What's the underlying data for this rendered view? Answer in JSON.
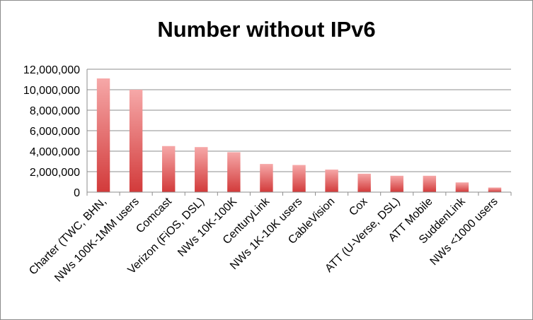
{
  "chart_data": {
    "type": "bar",
    "title": "Number without IPv6",
    "xlabel": "",
    "ylabel": "",
    "ylim": [
      0,
      12000000
    ],
    "yticks": [
      0,
      2000000,
      4000000,
      6000000,
      8000000,
      10000000,
      12000000
    ],
    "ytick_labels": [
      "0",
      "2,000,000",
      "4,000,000",
      "6,000,000",
      "8,000,000",
      "10,000,000",
      "12,000,000"
    ],
    "grid": true,
    "legend": "none",
    "bar_color_top": "#f6a8a8",
    "bar_color_bottom": "#d23a3a",
    "categories": [
      "Charter (TWC, BHN,",
      "NWs 100K-1MM users",
      "Comcast",
      "Verizon (FiOS, DSL)",
      "NWs 10K-100K",
      "CenturyLink",
      "NWs 1K-10K users",
      "CableVision",
      "Cox",
      "ATT (U-Verse, DSL)",
      "ATT Mobile",
      "SuddenLink",
      "NWs <1000 users"
    ],
    "values": [
      11100000,
      10000000,
      4500000,
      4400000,
      3900000,
      2750000,
      2650000,
      2200000,
      1800000,
      1600000,
      1600000,
      950000,
      450000
    ]
  }
}
